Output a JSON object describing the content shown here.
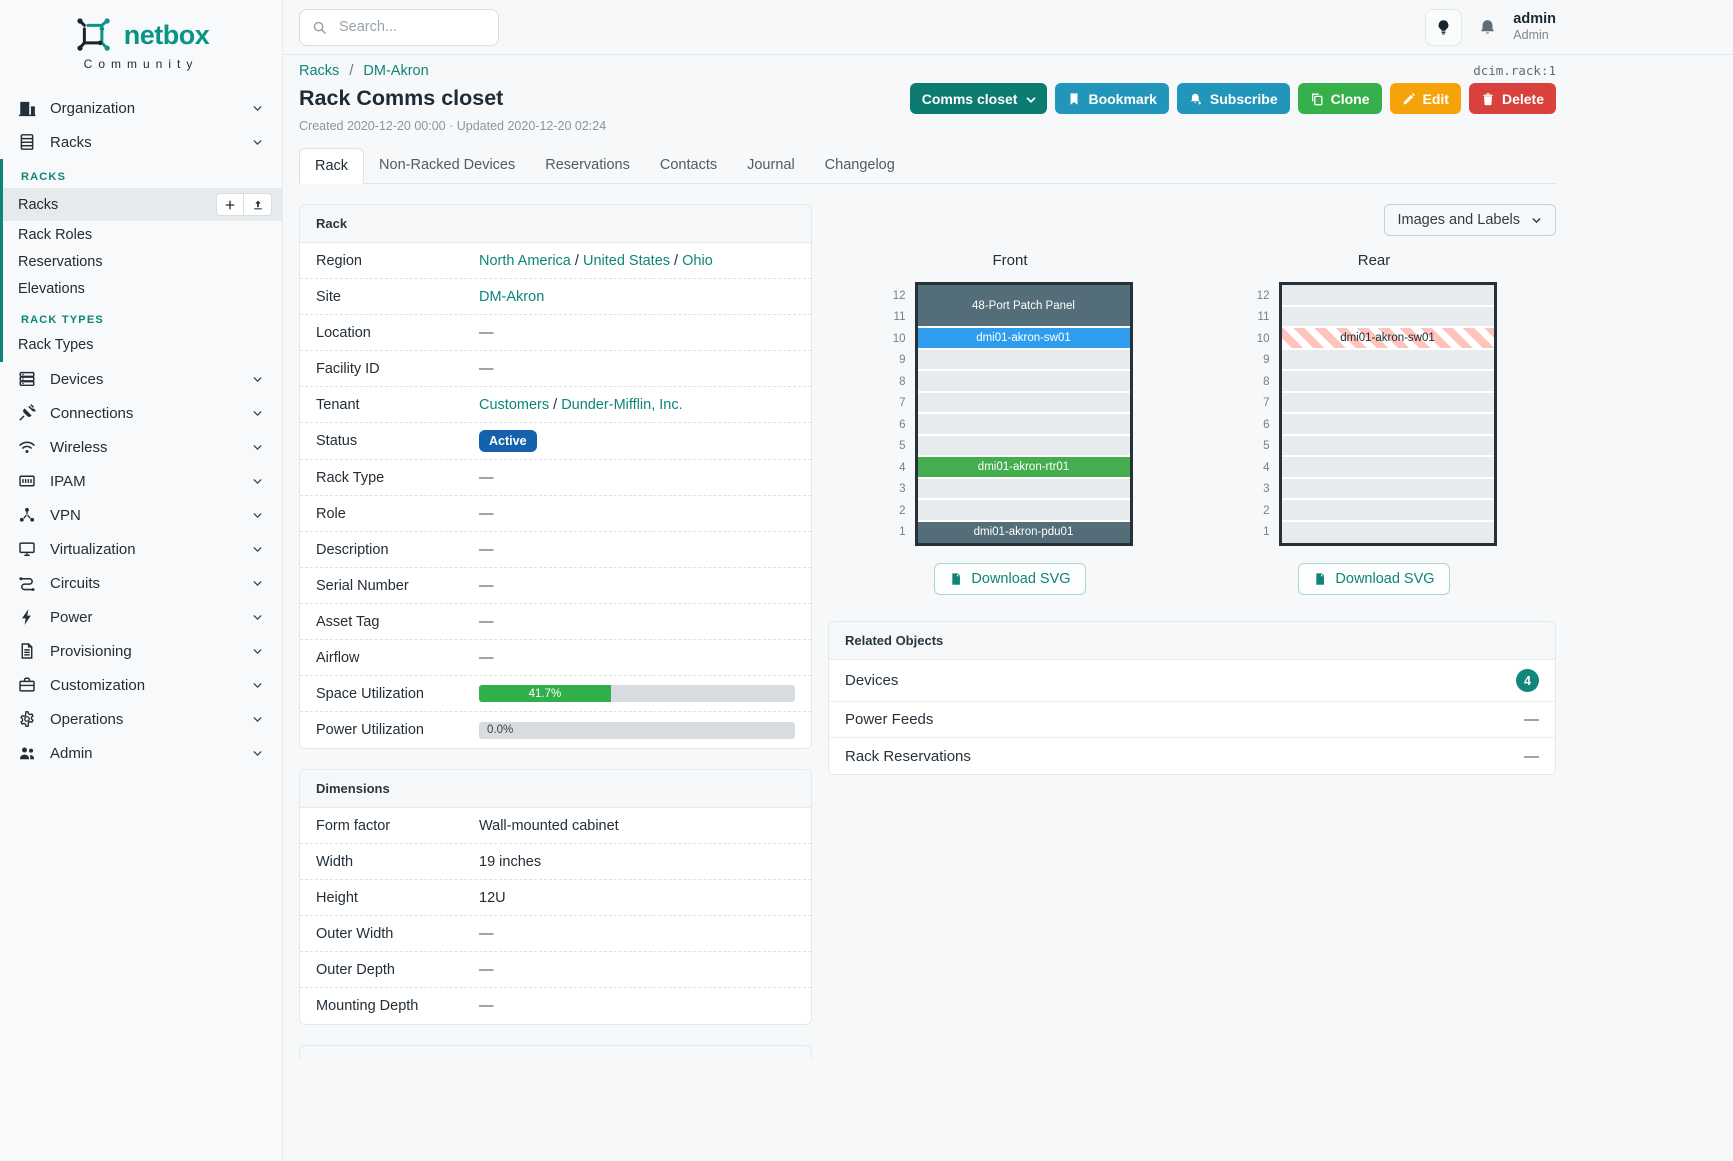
{
  "colors": {
    "accent_teal": "#0e8578",
    "brand_teal": "#0a9488",
    "status_active_badge": "#1362ab",
    "utilization_green": "#31b04a",
    "button_primary_teal": "#0c7b72",
    "button_cyan": "#2296ba",
    "button_green": "#36b04a",
    "button_orange": "#f5a309",
    "button_red": "#d9413d",
    "rack": {
      "dark": "#536d79",
      "blue": "#2f9ded",
      "green": "#44ad4e",
      "empty": "#e8ebed",
      "stripe": "#ffc3bd"
    }
  },
  "brand": {
    "name": "netbox",
    "subtitle": "Community"
  },
  "topbar": {
    "search_placeholder": "Search...",
    "username": "admin",
    "role": "Admin"
  },
  "object_id": "dcim.rack:1",
  "breadcrumb": {
    "items": [
      "Racks",
      "DM-Akron"
    ],
    "separator": "/"
  },
  "page": {
    "title": "Rack Comms closet",
    "meta": "Created 2020-12-20 00:00 · Updated 2020-12-20 02:24"
  },
  "actions": {
    "comms_closet": "Comms closet",
    "bookmark": "Bookmark",
    "subscribe": "Subscribe",
    "clone": "Clone",
    "edit": "Edit",
    "delete": "Delete"
  },
  "tabs": [
    {
      "label": "Rack",
      "active": true
    },
    {
      "label": "Non-Racked Devices",
      "active": false
    },
    {
      "label": "Reservations",
      "active": false
    },
    {
      "label": "Contacts",
      "active": false
    },
    {
      "label": "Journal",
      "active": false
    },
    {
      "label": "Changelog",
      "active": false
    }
  ],
  "sidebar": {
    "top": [
      {
        "label": "Organization",
        "icon": "building-icon"
      },
      {
        "label": "Racks",
        "icon": "rack-icon",
        "expanded": true
      }
    ],
    "submenu": {
      "groups": [
        {
          "header": "RACKS",
          "items": [
            {
              "label": "Racks",
              "active": true,
              "actions": [
                "add",
                "import"
              ]
            },
            {
              "label": "Rack Roles"
            },
            {
              "label": "Reservations"
            },
            {
              "label": "Elevations"
            }
          ]
        },
        {
          "header": "RACK TYPES",
          "items": [
            {
              "label": "Rack Types"
            }
          ]
        }
      ]
    },
    "rest": [
      {
        "label": "Devices",
        "icon": "devices-icon"
      },
      {
        "label": "Connections",
        "icon": "plug-icon"
      },
      {
        "label": "Wireless",
        "icon": "wifi-icon"
      },
      {
        "label": "IPAM",
        "icon": "ip-grid-icon"
      },
      {
        "label": "VPN",
        "icon": "network-nodes-icon"
      },
      {
        "label": "Virtualization",
        "icon": "monitor-icon"
      },
      {
        "label": "Circuits",
        "icon": "route-icon"
      },
      {
        "label": "Power",
        "icon": "bolt-icon"
      },
      {
        "label": "Provisioning",
        "icon": "document-icon"
      },
      {
        "label": "Customization",
        "icon": "briefcase-icon"
      },
      {
        "label": "Operations",
        "icon": "gear-icon"
      },
      {
        "label": "Admin",
        "icon": "users-icon"
      }
    ]
  },
  "rack_panel": {
    "title": "Rack",
    "rows": [
      {
        "label": "Region",
        "type": "links",
        "links": [
          "North America",
          "United States",
          "Ohio"
        ]
      },
      {
        "label": "Site",
        "type": "links",
        "links": [
          "DM-Akron"
        ]
      },
      {
        "label": "Location",
        "type": "dash"
      },
      {
        "label": "Facility ID",
        "type": "dash"
      },
      {
        "label": "Tenant",
        "type": "links",
        "links": [
          "Customers",
          "Dunder-Mifflin, Inc."
        ]
      },
      {
        "label": "Status",
        "type": "badge",
        "badge": "Active"
      },
      {
        "label": "Rack Type",
        "type": "dash"
      },
      {
        "label": "Role",
        "type": "dash"
      },
      {
        "label": "Description",
        "type": "dash"
      },
      {
        "label": "Serial Number",
        "type": "dash"
      },
      {
        "label": "Asset Tag",
        "type": "dash"
      },
      {
        "label": "Airflow",
        "type": "dash"
      },
      {
        "label": "Space Utilization",
        "type": "progress",
        "percent": 41.7,
        "text": "41.7%"
      },
      {
        "label": "Power Utilization",
        "type": "progress-zero",
        "percent": 0,
        "text": "0.0%"
      }
    ]
  },
  "dimensions_panel": {
    "title": "Dimensions",
    "rows": [
      {
        "label": "Form factor",
        "type": "text",
        "text": "Wall-mounted cabinet"
      },
      {
        "label": "Width",
        "type": "text",
        "text": "19 inches"
      },
      {
        "label": "Height",
        "type": "text",
        "text": "12U"
      },
      {
        "label": "Outer Width",
        "type": "dash"
      },
      {
        "label": "Outer Depth",
        "type": "dash"
      },
      {
        "label": "Mounting Depth",
        "type": "dash"
      }
    ]
  },
  "elevations": {
    "view_toggle_label": "Images and Labels",
    "download_label": "Download SVG",
    "front": {
      "title": "Front",
      "units": [
        {
          "u": 12,
          "span": 2,
          "label": "48-Port Patch Panel",
          "style": "dark"
        },
        {
          "u": 10,
          "span": 1,
          "label": "dmi01-akron-sw01",
          "style": "blue"
        },
        {
          "u": 9,
          "span": 1,
          "style": "empty"
        },
        {
          "u": 8,
          "span": 1,
          "style": "empty"
        },
        {
          "u": 7,
          "span": 1,
          "style": "empty"
        },
        {
          "u": 6,
          "span": 1,
          "style": "empty"
        },
        {
          "u": 5,
          "span": 1,
          "style": "empty"
        },
        {
          "u": 4,
          "span": 1,
          "label": "dmi01-akron-rtr01",
          "style": "green"
        },
        {
          "u": 3,
          "span": 1,
          "style": "empty"
        },
        {
          "u": 2,
          "span": 1,
          "style": "empty"
        },
        {
          "u": 1,
          "span": 1,
          "label": "dmi01-akron-pdu01",
          "style": "dark"
        }
      ]
    },
    "rear": {
      "title": "Rear",
      "units": [
        {
          "u": 12,
          "span": 1,
          "style": "empty"
        },
        {
          "u": 11,
          "span": 1,
          "style": "empty"
        },
        {
          "u": 10,
          "span": 1,
          "label": "dmi01-akron-sw01",
          "style": "striped"
        },
        {
          "u": 9,
          "span": 1,
          "style": "empty"
        },
        {
          "u": 8,
          "span": 1,
          "style": "empty"
        },
        {
          "u": 7,
          "span": 1,
          "style": "empty"
        },
        {
          "u": 6,
          "span": 1,
          "style": "empty"
        },
        {
          "u": 5,
          "span": 1,
          "style": "empty"
        },
        {
          "u": 4,
          "span": 1,
          "style": "empty"
        },
        {
          "u": 3,
          "span": 1,
          "style": "empty"
        },
        {
          "u": 2,
          "span": 1,
          "style": "empty"
        },
        {
          "u": 1,
          "span": 1,
          "style": "empty"
        }
      ]
    }
  },
  "related_objects": {
    "title": "Related Objects",
    "rows": [
      {
        "label": "Devices",
        "type": "count",
        "count": "4"
      },
      {
        "label": "Power Feeds",
        "type": "dash"
      },
      {
        "label": "Rack Reservations",
        "type": "dash"
      }
    ]
  }
}
